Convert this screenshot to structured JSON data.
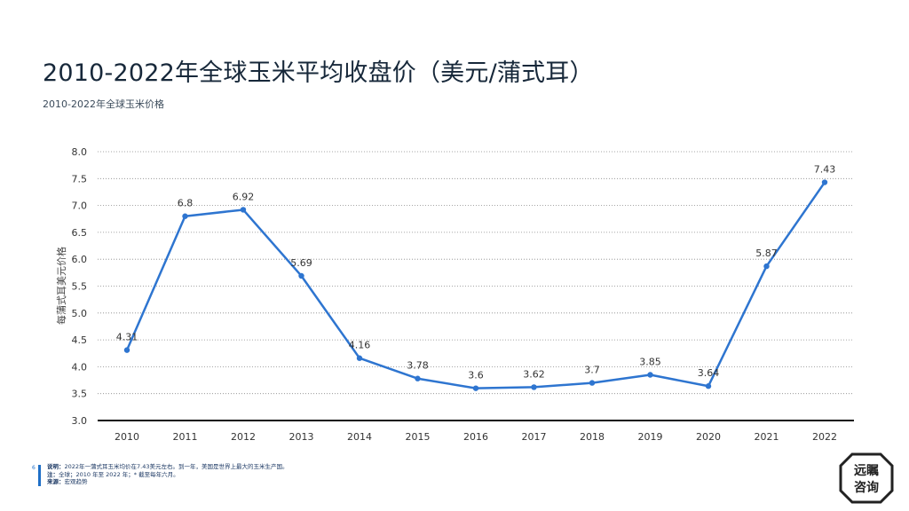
{
  "title": "2010-2022年全球玉米平均收盘价（美元/蒲式耳）",
  "subtitle": "2010-2022年全球玉米价格",
  "footer": {
    "page_number": "6",
    "note_label": "说明：",
    "note_text": "2022年一蒲式耳玉米均价在7.43美元左右。到一年，美国是世界上最大的玉米生产国。",
    "scope_label": "注：",
    "scope_text": "全球；2010 年至 2022 年；* 截至每年六月。",
    "source_label": "来源：",
    "source_text": "宏观趋势"
  },
  "logo": {
    "line1": "远瞩",
    "line2": "咨询"
  },
  "colors": {
    "line": "#2e75d0",
    "grid": "#888888",
    "accent": "#1f6fc7"
  },
  "chart_data": {
    "type": "line",
    "title": "",
    "xlabel": "",
    "ylabel": "每蒲式耳美元价格",
    "categories": [
      "2010",
      "2011",
      "2012",
      "2013",
      "2014",
      "2015",
      "2016",
      "2017",
      "2018",
      "2019",
      "2020",
      "2021",
      "2022"
    ],
    "values": [
      4.31,
      6.8,
      6.92,
      5.69,
      4.16,
      3.78,
      3.6,
      3.62,
      3.7,
      3.85,
      3.64,
      5.87,
      7.43
    ],
    "ylim": [
      3.0,
      8.0
    ],
    "yticks": [
      "3.0",
      "3.5",
      "4.0",
      "4.5",
      "5.0",
      "5.5",
      "6.0",
      "6.5",
      "7.0",
      "7.5",
      "8.0"
    ],
    "grid": "horizontal-dotted",
    "legend": "none"
  }
}
